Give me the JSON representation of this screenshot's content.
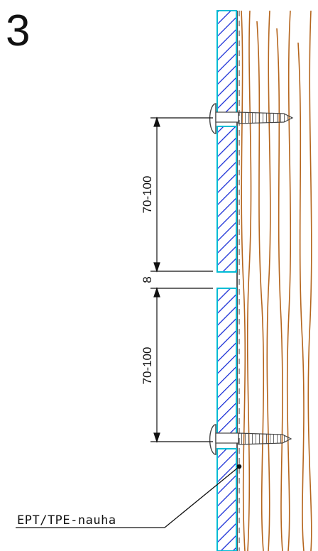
{
  "figure_number": "3",
  "dimensions": {
    "upper_spacing": "70-100",
    "gap": "8",
    "lower_spacing": "70-100"
  },
  "callout_label": "EPT/TPE-nauha",
  "colors": {
    "board_outline": "#00bcd4",
    "hatch": "#1a2fd6",
    "wood_grain": "#b5651d",
    "line": "#111111",
    "screw": "#555555"
  },
  "icons": [
    "screw-icon",
    "screw-icon"
  ]
}
